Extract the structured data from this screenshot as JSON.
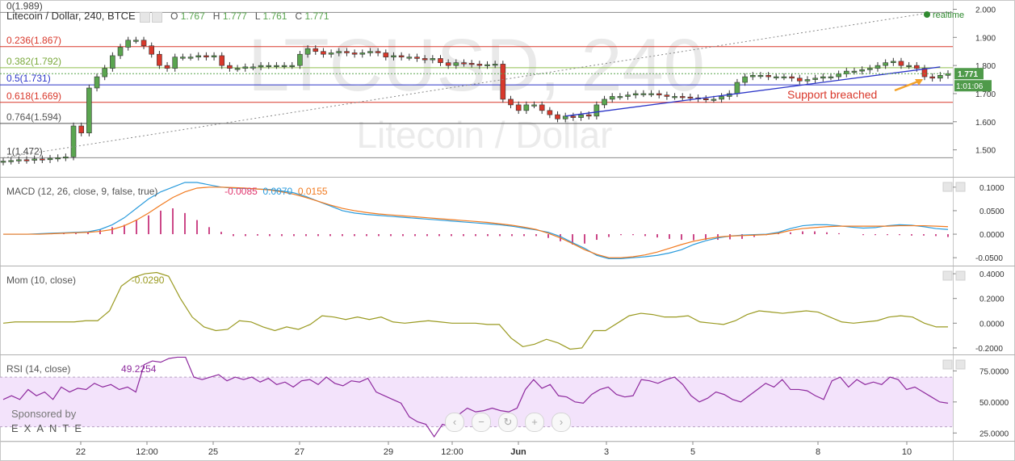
{
  "header": {
    "symbol_title": "Litecoin / Dollar, 240, BTCE",
    "o_label": "O",
    "o_value": "1.767",
    "h_label": "H",
    "h_value": "1.777",
    "l_label": "L",
    "l_value": "1.761",
    "c_label": "C",
    "c_value": "1.771"
  },
  "watermark": {
    "line1": "LTCUSD, 240",
    "line2": "Litecoin / Dollar"
  },
  "realtime_label": "realtime",
  "price_tag": "1.771",
  "timer_tag": "1:01:06",
  "annotation": "Support breached",
  "sponsor": {
    "text": "Sponsored by",
    "brand": "EXANTE"
  },
  "nav_icons": [
    "chevron-left-icon",
    "zoom-out-icon",
    "reset-icon",
    "zoom-in-icon",
    "chevron-right-icon"
  ],
  "nav_glyphs": [
    "‹",
    "−",
    "↻",
    "+",
    "›"
  ],
  "colors": {
    "up": "#5aa54f",
    "down": "#d9382b",
    "trend": "#2b35c8",
    "macd": "#2a9bdc",
    "signal": "#f17a1f",
    "hist": "#c01a6b",
    "mom": "#9a9a21",
    "rsi": "#8e2a9e",
    "rsi_band": "#f3e3fb"
  },
  "chart_data": [
    {
      "type": "candlestick",
      "title": "Litecoin / Dollar, 240, BTCE",
      "x_ticks": [
        "22",
        "12:00",
        "25",
        "27",
        "29",
        "12:00",
        "Jun",
        "3",
        "5",
        "8",
        "10"
      ],
      "y_ticks": [
        1.5,
        1.6,
        1.7,
        1.8,
        1.9,
        2.0
      ],
      "ylim": [
        1.43,
        2.01
      ],
      "fib_levels": [
        {
          "label": "0(1.989)",
          "value": 1.989,
          "color": "#8a8a8a"
        },
        {
          "label": "0.236(1.867)",
          "value": 1.867,
          "color": "#d9382b"
        },
        {
          "label": "0.382(1.792)",
          "value": 1.792,
          "color": "#8fbf4f"
        },
        {
          "label": "0.5(1.731)",
          "value": 1.731,
          "color": "#2b35c8"
        },
        {
          "label": "0.618(1.669)",
          "value": 1.669,
          "color": "#d9382b"
        },
        {
          "label": "0.764(1.594)",
          "value": 1.594,
          "color": "#555555"
        },
        {
          "label": "1(1.472)",
          "value": 1.472,
          "color": "#8a8a8a"
        }
      ],
      "close": [
        1.46,
        1.462,
        1.465,
        1.463,
        1.468,
        1.465,
        1.47,
        1.472,
        1.475,
        1.585,
        1.56,
        1.72,
        1.76,
        1.79,
        1.835,
        1.865,
        1.89,
        1.89,
        1.87,
        1.84,
        1.8,
        1.79,
        1.83,
        1.83,
        1.83,
        1.835,
        1.83,
        1.835,
        1.8,
        1.79,
        1.79,
        1.795,
        1.795,
        1.8,
        1.8,
        1.8,
        1.8,
        1.8,
        1.84,
        1.86,
        1.85,
        1.84,
        1.845,
        1.85,
        1.845,
        1.84,
        1.845,
        1.85,
        1.845,
        1.83,
        1.835,
        1.83,
        1.83,
        1.825,
        1.82,
        1.825,
        1.81,
        1.8,
        1.81,
        1.808,
        1.805,
        1.8,
        1.803,
        1.805,
        1.68,
        1.66,
        1.64,
        1.66,
        1.66,
        1.64,
        1.625,
        1.61,
        1.62,
        1.615,
        1.625,
        1.62,
        1.66,
        1.68,
        1.69,
        1.69,
        1.695,
        1.7,
        1.7,
        1.7,
        1.695,
        1.69,
        1.69,
        1.688,
        1.685,
        1.682,
        1.68,
        1.68,
        1.69,
        1.7,
        1.74,
        1.76,
        1.765,
        1.765,
        1.76,
        1.76,
        1.76,
        1.755,
        1.745,
        1.75,
        1.755,
        1.76,
        1.76,
        1.77,
        1.78,
        1.78,
        1.785,
        1.79,
        1.8,
        1.81,
        1.815,
        1.8,
        1.8,
        1.79,
        1.76,
        1.755,
        1.765,
        1.771
      ],
      "open_offsets_note": "",
      "trendlines": [
        {
          "from": [
            0,
            1.472
          ],
          "to": [
            119,
            1.989
          ],
          "style": "dotted"
        },
        {
          "from": [
            72,
            1.62
          ],
          "to": [
            120,
            1.795
          ],
          "style": "solid"
        }
      ]
    },
    {
      "type": "line",
      "title": "MACD (12, 26, close, 9, false, true)",
      "readouts": [
        "-0.0085",
        "0.0070",
        "0.0155"
      ],
      "y_ticks": [
        -0.05,
        0.0,
        0.05,
        0.1
      ],
      "ylim": [
        -0.06,
        0.11
      ],
      "series": [
        {
          "name": "MACD",
          "values": [
            0.0,
            0.0,
            0.0,
            0.001,
            0.002,
            0.003,
            0.004,
            0.005,
            0.01,
            0.02,
            0.035,
            0.055,
            0.075,
            0.09,
            0.1,
            0.11,
            0.11,
            0.105,
            0.1,
            0.098,
            0.097,
            0.096,
            0.095,
            0.092,
            0.088,
            0.08,
            0.07,
            0.06,
            0.05,
            0.045,
            0.042,
            0.04,
            0.038,
            0.036,
            0.034,
            0.032,
            0.03,
            0.028,
            0.026,
            0.024,
            0.022,
            0.02,
            0.017,
            0.013,
            0.009,
            0.004,
            -0.005,
            -0.018,
            -0.03,
            -0.045,
            -0.052,
            -0.052,
            -0.05,
            -0.048,
            -0.045,
            -0.04,
            -0.033,
            -0.022,
            -0.014,
            -0.008,
            -0.004,
            -0.002,
            -0.001,
            0.0,
            0.004,
            0.012,
            0.018,
            0.02,
            0.02,
            0.018,
            0.015,
            0.013,
            0.014,
            0.018,
            0.02,
            0.019,
            0.016,
            0.012,
            0.01
          ]
        },
        {
          "name": "Signal",
          "values": [
            0.0,
            0.0,
            0.0,
            0.0,
            0.001,
            0.002,
            0.003,
            0.004,
            0.006,
            0.01,
            0.018,
            0.03,
            0.045,
            0.062,
            0.078,
            0.09,
            0.098,
            0.1,
            0.1,
            0.099,
            0.098,
            0.096,
            0.094,
            0.09,
            0.085,
            0.078,
            0.07,
            0.062,
            0.055,
            0.05,
            0.046,
            0.043,
            0.041,
            0.039,
            0.037,
            0.035,
            0.033,
            0.031,
            0.029,
            0.027,
            0.025,
            0.022,
            0.019,
            0.015,
            0.01,
            0.002,
            -0.008,
            -0.02,
            -0.033,
            -0.043,
            -0.05,
            -0.05,
            -0.048,
            -0.044,
            -0.038,
            -0.03,
            -0.022,
            -0.015,
            -0.01,
            -0.006,
            -0.004,
            -0.003,
            -0.002,
            -0.001,
            0.002,
            0.008,
            0.012,
            0.014,
            0.016,
            0.017,
            0.017,
            0.017,
            0.017,
            0.017,
            0.018,
            0.018,
            0.018,
            0.017,
            0.016
          ]
        },
        {
          "name": "Histogram",
          "values": [
            0.0,
            0.0,
            0.0,
            0.001,
            0.002,
            0.002,
            0.002,
            0.004,
            0.01,
            0.015,
            0.02,
            0.03,
            0.04,
            0.05,
            0.055,
            0.045,
            0.03,
            0.015,
            0.005,
            -0.004,
            -0.004,
            -0.003,
            -0.004,
            -0.004,
            -0.004,
            -0.004,
            -0.004,
            -0.004,
            -0.004,
            -0.004,
            -0.004,
            -0.004,
            -0.004,
            -0.004,
            -0.004,
            -0.004,
            -0.004,
            -0.004,
            -0.004,
            -0.004,
            -0.004,
            -0.004,
            -0.004,
            -0.004,
            -0.004,
            -0.008,
            -0.015,
            -0.022,
            -0.02,
            -0.012,
            -0.006,
            -0.002,
            -0.002,
            -0.004,
            -0.007,
            -0.01,
            -0.012,
            -0.013,
            -0.012,
            -0.012,
            -0.011,
            -0.01,
            -0.006,
            -0.002,
            0.002,
            0.004,
            0.006,
            0.006,
            0.004,
            0.002,
            0.0,
            -0.002,
            -0.002,
            -0.002,
            -0.002,
            -0.003,
            -0.003,
            -0.004,
            -0.006
          ]
        }
      ]
    },
    {
      "type": "line",
      "title": "Mom (10, close)",
      "readouts": [
        "-0.0290"
      ],
      "y_ticks": [
        -0.2,
        0.0,
        0.2,
        0.4
      ],
      "ylim": [
        -0.22,
        0.42
      ],
      "series": [
        {
          "name": "Momentum",
          "values": [
            0.0,
            0.01,
            0.01,
            0.01,
            0.01,
            0.01,
            0.01,
            0.02,
            0.02,
            0.1,
            0.3,
            0.37,
            0.4,
            0.41,
            0.38,
            0.2,
            0.05,
            -0.03,
            -0.06,
            -0.05,
            0.02,
            0.01,
            -0.03,
            -0.06,
            -0.03,
            -0.05,
            -0.01,
            0.06,
            0.05,
            0.03,
            0.05,
            0.03,
            0.05,
            0.01,
            0.0,
            0.01,
            0.02,
            0.01,
            0.0,
            0.0,
            0.0,
            -0.01,
            -0.01,
            -0.12,
            -0.19,
            -0.17,
            -0.13,
            -0.16,
            -0.21,
            -0.2,
            -0.06,
            -0.06,
            0.0,
            0.06,
            0.08,
            0.07,
            0.05,
            0.05,
            0.06,
            0.01,
            0.0,
            -0.01,
            0.02,
            0.07,
            0.1,
            0.09,
            0.08,
            0.09,
            0.1,
            0.09,
            0.05,
            0.01,
            0.0,
            0.01,
            0.02,
            0.05,
            0.06,
            0.05,
            0.0,
            -0.03,
            -0.03
          ]
        }
      ]
    },
    {
      "type": "line",
      "title": "RSI (14, close)",
      "readouts": [
        "49.2254"
      ],
      "y_ticks": [
        25,
        50,
        75
      ],
      "ylim": [
        20,
        85
      ],
      "band": [
        30,
        70
      ],
      "series": [
        {
          "name": "RSI",
          "values": [
            52,
            55,
            52,
            60,
            55,
            58,
            52,
            62,
            58,
            61,
            60,
            65,
            62,
            64,
            60,
            62,
            58,
            80,
            83,
            82,
            85,
            86,
            86,
            70,
            68,
            70,
            72,
            67,
            70,
            68,
            70,
            66,
            69,
            64,
            66,
            62,
            67,
            68,
            64,
            70,
            65,
            63,
            67,
            66,
            69,
            58,
            55,
            52,
            49,
            38,
            34,
            32,
            22,
            32,
            30,
            40,
            45,
            42,
            43,
            45,
            43,
            42,
            45,
            60,
            68,
            61,
            64,
            55,
            54,
            50,
            49,
            56,
            60,
            62,
            56,
            54,
            55,
            68,
            67,
            65,
            68,
            70,
            64,
            55,
            50,
            53,
            58,
            56,
            52,
            50,
            55,
            60,
            65,
            62,
            68,
            60,
            60,
            59,
            55,
            52,
            67,
            70,
            62,
            68,
            64,
            66,
            64,
            70,
            68,
            60,
            62,
            58,
            54,
            50,
            49
          ]
        }
      ]
    }
  ]
}
